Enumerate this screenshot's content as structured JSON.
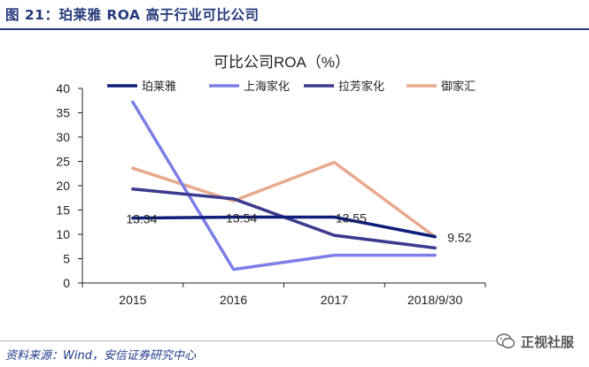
{
  "figure": {
    "title": "图 21：珀莱雅 ROA 高于行业可比公司",
    "source": "资料来源：Wind，安信证券研究中心",
    "watermark": "正视社服"
  },
  "chart_data": {
    "type": "line",
    "title": "可比公司ROA（%）",
    "categories": [
      "2015",
      "2016",
      "2017",
      "2018/9/30"
    ],
    "ylim": [
      0,
      40
    ],
    "yticks": [
      0,
      5,
      10,
      15,
      20,
      25,
      30,
      35,
      40
    ],
    "xlabel": "",
    "ylabel": "",
    "grid": false,
    "legend_position": "top",
    "series": [
      {
        "name": "珀莱雅",
        "color": "#0d1f7a",
        "values": [
          13.34,
          13.54,
          13.55,
          9.52
        ],
        "data_labels": [
          "13.34",
          "13.54",
          "13.55",
          "9.52"
        ]
      },
      {
        "name": "上海家化",
        "color": "#7b7fe8",
        "values": [
          37.2,
          2.8,
          5.7,
          5.7
        ]
      },
      {
        "name": "拉芳家化",
        "color": "#3b3a8e",
        "values": [
          19.3,
          17.3,
          9.8,
          7.2
        ]
      },
      {
        "name": "御家汇",
        "color": "#e9a98c",
        "values": [
          23.6,
          16.9,
          24.8,
          9.5
        ]
      }
    ]
  }
}
